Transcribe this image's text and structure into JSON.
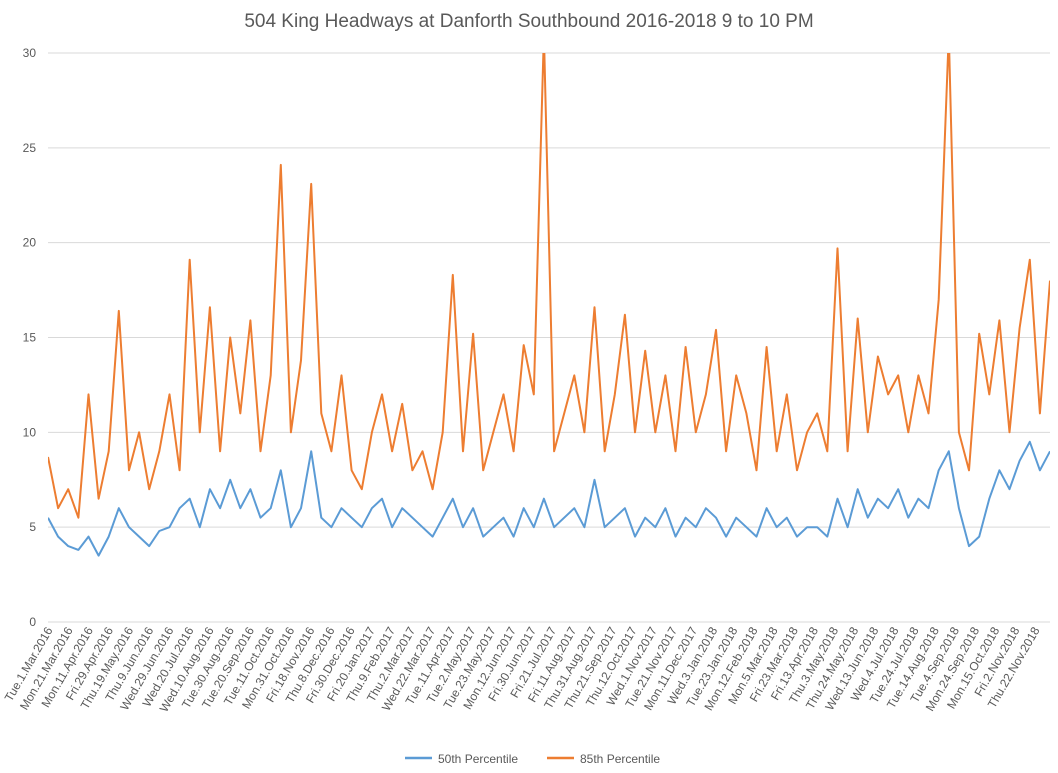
{
  "chart_data": {
    "type": "line",
    "title": "504 King Headways at Danforth Southbound 2016-2018 9 to 10 PM",
    "xlabel": "",
    "ylabel": "",
    "ylim": [
      0,
      30
    ],
    "yticks": [
      0,
      5,
      10,
      15,
      20,
      25,
      30
    ],
    "grid": true,
    "legend": "bottom",
    "x_tick_labels": [
      "Tue.1.Mar.2016",
      "Mon.21.Mar.2016",
      "Mon.11.Apr.2016",
      "Fri.29.Apr.2016",
      "Thu.19.May.2016",
      "Thu.9.Jun.2016",
      "Wed.29.Jun.2016",
      "Wed.20.Jul.2016",
      "Wed.10.Aug.2016",
      "Tue.30.Aug.2016",
      "Tue.20.Sep.2016",
      "Tue.11.Oct.2016",
      "Mon.31.Oct.2016",
      "Fri.18.Nov.2016",
      "Thu.8.Dec.2016",
      "Fri.30.Dec.2016",
      "Fri.20.Jan.2017",
      "Thu.9.Feb.2017",
      "Thu.2.Mar.2017",
      "Wed.22.Mar.2017",
      "Tue.11.Apr.2017",
      "Tue.2.May.2017",
      "Tue.23.May.2017",
      "Mon.12.Jun.2017",
      "Fri.30.Jun.2017",
      "Fri.21.Jul.2017",
      "Fri.11.Aug.2017",
      "Thu.31.Aug.2017",
      "Thu.21.Sep.2017",
      "Thu.12.Oct.2017",
      "Wed.1.Nov.2017",
      "Tue.21.Nov.2017",
      "Mon.11.Dec.2017",
      "Wed.3.Jan.2018",
      "Tue.23.Jan.2018",
      "Mon.12.Feb.2018",
      "Mon.5.Mar.2018",
      "Fri.23.Mar.2018",
      "Fri.13.Apr.2018",
      "Thu.3.May.2018",
      "Thu.24.May.2018",
      "Wed.13.Jun.2018",
      "Wed.4.Jul.2018",
      "Tue.24.Jul.2018",
      "Tue.14.Aug.2018",
      "Tue.4.Sep.2018",
      "Mon.24.Sep.2018",
      "Mon.15.Oct.2018",
      "Fri.2.Nov.2018",
      "Thu.22.Nov.2018"
    ],
    "series": [
      {
        "name": "50th Percentile",
        "color": "#5B9BD5",
        "values": [
          5.5,
          4.5,
          4,
          3.8,
          4.5,
          3.5,
          4.5,
          6,
          5,
          4.5,
          4,
          4.8,
          5,
          6,
          6.5,
          5,
          7,
          6,
          7.5,
          6,
          7,
          5.5,
          6,
          8,
          5,
          6,
          9,
          5.5,
          5,
          6,
          5.5,
          5,
          6,
          6.5,
          5,
          6,
          5.5,
          5,
          4.5,
          5.5,
          6.5,
          5,
          6,
          4.5,
          5,
          5.5,
          4.5,
          6,
          5,
          6.5,
          5,
          5.5,
          6,
          5,
          7.5,
          5,
          5.5,
          6,
          4.5,
          5.5,
          5,
          6,
          4.5,
          5.5,
          5,
          6,
          5.5,
          4.5,
          5.5,
          5,
          4.5,
          6,
          5,
          5.5,
          4.5,
          5,
          5,
          4.5,
          6.5,
          5,
          7,
          5.5,
          6.5,
          6,
          7,
          5.5,
          6.5,
          6,
          8,
          9,
          6,
          4,
          4.5,
          6.5,
          8,
          7,
          8.5,
          9.5,
          8,
          9
        ]
      },
      {
        "name": "85th Percentile",
        "color": "#ED7D31",
        "values": [
          8.7,
          6,
          7,
          5.5,
          12,
          6.5,
          9,
          16.4,
          8,
          10,
          7,
          9,
          12,
          8,
          19.1,
          10,
          16.6,
          9,
          15,
          11,
          15.9,
          9,
          13,
          24.1,
          10,
          13.8,
          23.1,
          11,
          9,
          13,
          8,
          7,
          10,
          12,
          9,
          11.5,
          8,
          9,
          7,
          10,
          18.3,
          9,
          15.2,
          8,
          10,
          12,
          9,
          14.6,
          12,
          35,
          9,
          11,
          13,
          10,
          16.6,
          9,
          12,
          16.2,
          10,
          14.3,
          10,
          13,
          9,
          14.5,
          10,
          12,
          15.4,
          9,
          13,
          11,
          8,
          14.5,
          9,
          12,
          8,
          10,
          11,
          9,
          19.7,
          9,
          16,
          10,
          14,
          12,
          13,
          10,
          13,
          11,
          17,
          35,
          10,
          8,
          15.2,
          12,
          15.9,
          10,
          15.5,
          19.1,
          11,
          18
        ]
      }
    ]
  }
}
